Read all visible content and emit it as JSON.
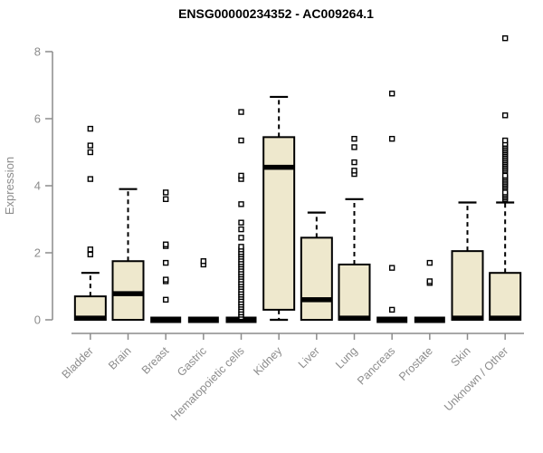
{
  "chart_data": {
    "type": "boxplot",
    "title": "ENSG00000234352 - AC009264.1",
    "ylabel": "Expression",
    "ylim": [
      0,
      8.5
    ],
    "yticks": [
      0,
      2,
      4,
      6,
      8
    ],
    "grid": false,
    "legend": "none",
    "axis_color": "#8c8c8c",
    "box_fill": "#EEE8CD",
    "box_stroke": "#000000",
    "outlier_fill": "#ffffff",
    "categories": [
      "Bladder",
      "Brain",
      "Breast",
      "Gastric",
      "Hematopoietic cells",
      "Kidney",
      "Liver",
      "Lung",
      "Pancreas",
      "Prostate",
      "Skin",
      "Unknown / Other"
    ],
    "series": [
      {
        "name": "Bladder",
        "q1": 0,
        "median": 0.05,
        "q3": 0.7,
        "whisker_low": 0,
        "whisker_high": 1.4,
        "outliers": [
          1.95,
          2.1,
          4.2,
          5.0,
          5.2,
          5.7
        ]
      },
      {
        "name": "Brain",
        "q1": 0,
        "median": 0.78,
        "q3": 1.75,
        "whisker_low": 0,
        "whisker_high": 3.9,
        "outliers": []
      },
      {
        "name": "Breast",
        "q1": 0,
        "median": 0,
        "q3": 0,
        "whisker_low": 0,
        "whisker_high": 0,
        "outliers": [
          0.6,
          1.15,
          1.2,
          1.7,
          2.2,
          2.25,
          3.6,
          3.8
        ]
      },
      {
        "name": "Gastric",
        "q1": 0,
        "median": 0,
        "q3": 0,
        "whisker_low": 0,
        "whisker_high": 0,
        "outliers": [
          1.65,
          1.75
        ]
      },
      {
        "name": "Hematopoietic cells",
        "q1": 0,
        "median": 0,
        "q3": 0,
        "whisker_low": 0,
        "whisker_high": 0,
        "outliers": [
          0.08,
          0.15,
          0.22,
          0.3,
          0.38,
          0.45,
          0.52,
          0.6,
          0.68,
          0.75,
          0.82,
          0.9,
          0.98,
          1.05,
          1.12,
          1.2,
          1.28,
          1.35,
          1.42,
          1.5,
          1.58,
          1.65,
          1.72,
          1.8,
          1.88,
          1.95,
          2.02,
          2.1,
          2.18,
          2.45,
          2.7,
          2.9,
          3.45,
          4.2,
          4.3,
          5.35,
          6.2
        ]
      },
      {
        "name": "Kidney",
        "q1": 0.3,
        "median": 4.55,
        "q3": 5.45,
        "whisker_low": 0,
        "whisker_high": 6.65,
        "outliers": []
      },
      {
        "name": "Liver",
        "q1": 0,
        "median": 0.6,
        "q3": 2.45,
        "whisker_low": 0,
        "whisker_high": 3.2,
        "outliers": []
      },
      {
        "name": "Lung",
        "q1": 0,
        "median": 0.05,
        "q3": 1.65,
        "whisker_low": 0,
        "whisker_high": 3.6,
        "outliers": [
          4.35,
          4.45,
          4.7,
          5.15,
          5.4
        ]
      },
      {
        "name": "Pancreas",
        "q1": 0,
        "median": 0,
        "q3": 0,
        "whisker_low": 0,
        "whisker_high": 0,
        "outliers": [
          0.3,
          1.55,
          5.4,
          6.75
        ]
      },
      {
        "name": "Prostate",
        "q1": 0,
        "median": 0,
        "q3": 0,
        "whisker_low": 0,
        "whisker_high": 0,
        "outliers": [
          1.1,
          1.15,
          1.7
        ]
      },
      {
        "name": "Skin",
        "q1": 0,
        "median": 0.05,
        "q3": 2.05,
        "whisker_low": 0,
        "whisker_high": 3.5,
        "outliers": []
      },
      {
        "name": "Unknown / Other",
        "q1": 0,
        "median": 0.05,
        "q3": 1.4,
        "whisker_low": 0,
        "whisker_high": 3.5,
        "outliers": [
          3.6,
          3.65,
          3.7,
          3.75,
          3.8,
          3.95,
          4.0,
          4.05,
          4.1,
          4.15,
          4.2,
          4.25,
          4.3,
          4.45,
          4.5,
          4.55,
          4.6,
          4.65,
          4.7,
          4.75,
          4.8,
          4.85,
          4.9,
          4.95,
          5.0,
          5.05,
          5.1,
          5.15,
          5.2,
          5.25,
          5.35,
          6.1,
          8.4
        ]
      }
    ]
  }
}
